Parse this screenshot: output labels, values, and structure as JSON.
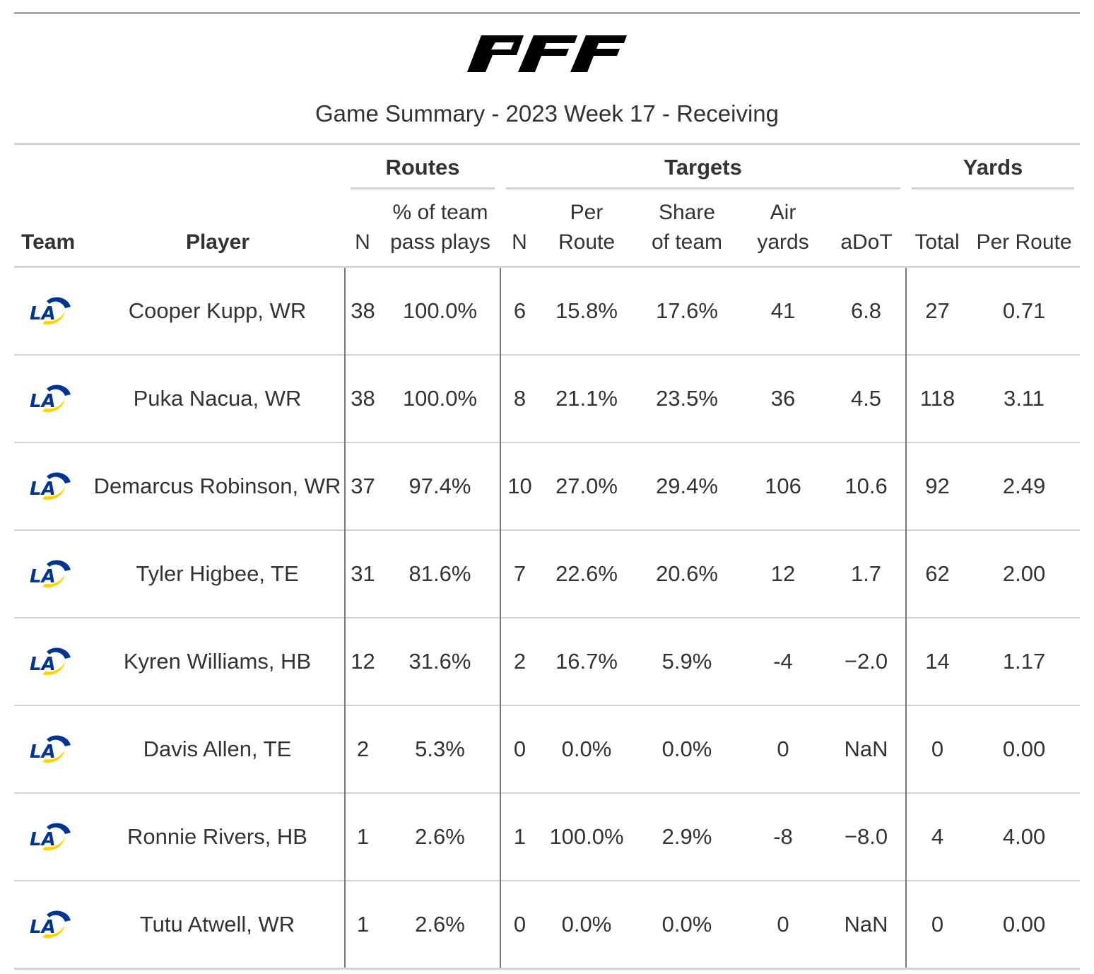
{
  "brand": {
    "logo_text": "PFF"
  },
  "title": "Game Summary - 2023 Week 17 - Receiving",
  "spanners": {
    "routes": "Routes",
    "targets": "Targets",
    "yards": "Yards"
  },
  "columns": {
    "team": "Team",
    "player": "Player",
    "routes_n": "N",
    "routes_pct_line1": "% of team",
    "routes_pct_line2": "pass plays",
    "targets_n": "N",
    "targets_per_route": "Per Route",
    "share_line1": "Share",
    "share_line2": "of team",
    "air_yards": "Air yards",
    "adot": "aDoT",
    "yards_total": "Total",
    "yards_per_route": "Per Route"
  },
  "team_logo": {
    "text": "LA",
    "primary": "#003594",
    "accent": "#FFD100"
  },
  "rows": [
    {
      "player": "Cooper Kupp, WR",
      "routes_n": "38",
      "routes_pct": "100.0%",
      "targets_n": "6",
      "targets_per_route": "15.8%",
      "share": "17.6%",
      "air_yards": "41",
      "adot": "6.8",
      "yards_total": "27",
      "yards_per_route": "0.71"
    },
    {
      "player": "Puka Nacua, WR",
      "routes_n": "38",
      "routes_pct": "100.0%",
      "targets_n": "8",
      "targets_per_route": "21.1%",
      "share": "23.5%",
      "air_yards": "36",
      "adot": "4.5",
      "yards_total": "118",
      "yards_per_route": "3.11"
    },
    {
      "player": "Demarcus Robinson, WR",
      "routes_n": "37",
      "routes_pct": "97.4%",
      "targets_n": "10",
      "targets_per_route": "27.0%",
      "share": "29.4%",
      "air_yards": "106",
      "adot": "10.6",
      "yards_total": "92",
      "yards_per_route": "2.49"
    },
    {
      "player": "Tyler Higbee, TE",
      "routes_n": "31",
      "routes_pct": "81.6%",
      "targets_n": "7",
      "targets_per_route": "22.6%",
      "share": "20.6%",
      "air_yards": "12",
      "adot": "1.7",
      "yards_total": "62",
      "yards_per_route": "2.00"
    },
    {
      "player": "Kyren Williams, HB",
      "routes_n": "12",
      "routes_pct": "31.6%",
      "targets_n": "2",
      "targets_per_route": "16.7%",
      "share": "5.9%",
      "air_yards": "-4",
      "adot": "−2.0",
      "yards_total": "14",
      "yards_per_route": "1.17"
    },
    {
      "player": "Davis Allen, TE",
      "routes_n": "2",
      "routes_pct": "5.3%",
      "targets_n": "0",
      "targets_per_route": "0.0%",
      "share": "0.0%",
      "air_yards": "0",
      "adot": "NaN",
      "yards_total": "0",
      "yards_per_route": "0.00"
    },
    {
      "player": "Ronnie Rivers, HB",
      "routes_n": "1",
      "routes_pct": "2.6%",
      "targets_n": "1",
      "targets_per_route": "100.0%",
      "share": "2.9%",
      "air_yards": "-8",
      "adot": "−8.0",
      "yards_total": "4",
      "yards_per_route": "4.00"
    },
    {
      "player": "Tutu Atwell, WR",
      "routes_n": "1",
      "routes_pct": "2.6%",
      "targets_n": "0",
      "targets_per_route": "0.0%",
      "share": "0.0%",
      "air_yards": "0",
      "adot": "NaN",
      "yards_total": "0",
      "yards_per_route": "0.00"
    }
  ]
}
